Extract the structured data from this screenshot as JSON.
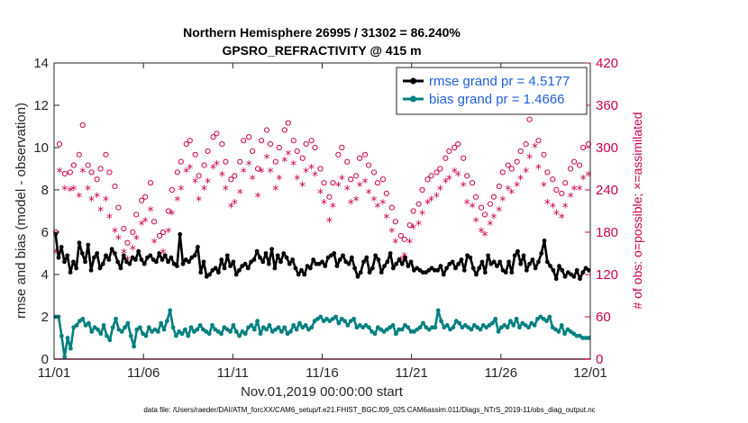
{
  "chart_data": {
    "type": "line",
    "title": "Northern Hemisphere 26995 / 31302 = 86.240%",
    "subtitle": "GPSRO_REFRACTIVITY @ 415 m",
    "xlabel": "Nov.01,2019 00:00:00 start",
    "ylabel": "rmse and bias (model - observation)",
    "ylabel_right": "# of obs: o=possible; ×=assimilated",
    "footer": "data file: /Users/raeder/DAI/ATM_forcXX/CAM6_setup/f.e21.FHIST_BGC.f09_025.CAM6assim.011/Diags_NTrS_2019-11/obs_diag_output.nc",
    "x_ticks": [
      "11/01",
      "11/06",
      "11/11",
      "11/16",
      "11/21",
      "11/26",
      "12/01"
    ],
    "xlim_days": [
      0,
      30
    ],
    "ylim": [
      0,
      14
    ],
    "y_ticks": [
      0,
      2,
      4,
      6,
      8,
      10,
      12,
      14
    ],
    "ylim_right": [
      0,
      420
    ],
    "y_ticks_right": [
      0,
      60,
      120,
      180,
      240,
      300,
      360,
      420
    ],
    "grid": false,
    "legend_position": "top-right",
    "colors": {
      "rmse": "#000000",
      "bias": "#00807f",
      "obs": "#cc0050",
      "legend_text": "#1f5fdc"
    },
    "series": [
      {
        "name": "rmse grand pr = 4.5177",
        "axis": "left",
        "values": [
          5.9,
          4.8,
          5.3,
          4.6,
          4.9,
          4.1,
          4.6,
          4.3,
          5.5,
          5.0,
          4.6,
          5.4,
          4.2,
          4.8,
          5.0,
          4.3,
          4.5,
          4.9,
          4.7,
          5.2,
          5.0,
          4.6,
          4.3,
          4.9,
          4.6,
          4.5,
          4.8,
          4.7,
          5.1,
          4.7,
          4.5,
          4.8,
          4.9,
          4.7,
          4.6,
          5.0,
          4.7,
          4.9,
          4.6,
          4.8,
          4.5,
          4.4,
          5.9,
          4.5,
          4.7,
          4.6,
          4.8,
          4.9,
          5.3,
          4.1,
          4.6,
          3.9,
          4.0,
          4.2,
          4.3,
          4.1,
          4.7,
          4.3,
          4.9,
          4.4,
          4.6,
          4.0,
          4.2,
          4.4,
          4.5,
          4.3,
          4.6,
          4.7,
          5.1,
          4.8,
          4.6,
          5.0,
          4.5,
          5.2,
          4.3,
          4.9,
          4.6,
          5.0,
          4.8,
          4.5,
          4.7,
          4.3,
          4.0,
          4.2,
          4.0,
          4.4,
          4.3,
          4.7,
          4.5,
          4.5,
          4.6,
          4.4,
          4.8,
          4.9,
          5.0,
          4.4,
          4.7,
          4.9,
          4.6,
          4.5,
          4.8,
          4.3,
          3.9,
          4.1,
          4.6,
          4.8,
          4.1,
          4.3,
          4.9,
          4.7,
          4.1,
          4.4,
          4.6,
          5.0,
          4.3,
          4.5,
          4.7,
          4.5,
          4.8,
          4.4,
          4.6,
          4.2,
          4.3,
          4.2,
          4.1,
          4.1,
          4.2,
          4.3,
          4.2,
          4.2,
          4.4,
          4.0,
          4.3,
          4.5,
          4.6,
          4.3,
          4.5,
          4.7,
          4.2,
          4.9,
          4.8,
          4.3,
          4.0,
          4.3,
          4.6,
          4.1,
          4.9,
          4.5,
          4.6,
          4.4,
          4.6,
          4.2,
          4.1,
          4.6,
          4.1,
          4.9,
          5.1,
          4.5,
          4.9,
          4.2,
          4.5,
          4.7,
          4.3,
          4.6,
          5.0,
          5.6,
          4.6,
          4.4,
          4.2,
          3.8,
          4.4,
          4.2,
          3.9,
          4.1,
          4.0,
          3.9,
          4.2,
          3.8,
          4.1,
          4.3,
          4.2
        ]
      },
      {
        "name": "bias grand pr = 1.4666",
        "axis": "left",
        "values": [
          2.0,
          2.0,
          1.1,
          0.1,
          1.0,
          0.5,
          1.5,
          1.6,
          1.8,
          1.9,
          1.6,
          1.7,
          1.3,
          1.5,
          1.4,
          1.2,
          1.6,
          1.1,
          0.9,
          1.5,
          1.9,
          1.4,
          1.3,
          1.5,
          1.7,
          1.1,
          0.6,
          1.4,
          1.5,
          1.2,
          1.1,
          1.5,
          1.3,
          1.4,
          1.3,
          1.7,
          1.4,
          1.8,
          2.3,
          1.5,
          1.1,
          1.3,
          1.2,
          1.4,
          1.1,
          1.5,
          1.3,
          1.4,
          1.6,
          1.4,
          1.3,
          1.2,
          1.6,
          1.4,
          1.3,
          1.2,
          1.5,
          1.4,
          1.3,
          1.6,
          1.3,
          1.1,
          1.3,
          1.2,
          1.5,
          1.6,
          1.4,
          1.8,
          1.2,
          1.5,
          1.4,
          1.6,
          1.3,
          1.4,
          1.5,
          1.3,
          1.5,
          1.2,
          1.3,
          1.6,
          1.4,
          1.7,
          1.5,
          1.6,
          1.4,
          1.5,
          1.8,
          1.9,
          2.0,
          1.8,
          1.9,
          1.8,
          1.9,
          2.0,
          1.7,
          1.9,
          1.8,
          1.6,
          1.8,
          1.9,
          1.5,
          1.6,
          1.5,
          1.6,
          1.5,
          1.3,
          1.2,
          1.5,
          1.4,
          1.3,
          1.4,
          1.5,
          1.6,
          1.2,
          1.4,
          1.4,
          1.6,
          1.5,
          1.3,
          1.3,
          1.4,
          1.5,
          1.7,
          1.5,
          1.4,
          1.5,
          1.5,
          2.3,
          1.8,
          1.5,
          1.6,
          1.4,
          1.5,
          1.8,
          1.7,
          1.5,
          1.6,
          1.5,
          1.4,
          1.6,
          1.5,
          1.4,
          1.6,
          1.5,
          1.6,
          1.7,
          1.9,
          1.3,
          1.5,
          1.6,
          1.5,
          1.8,
          1.6,
          1.9,
          1.5,
          1.7,
          1.6,
          1.5,
          1.7,
          1.6,
          1.9,
          2.0,
          1.9,
          1.8,
          2.0,
          1.5,
          1.4,
          1.3,
          1.6,
          1.2,
          1.4,
          1.3,
          1.2,
          1.1,
          1.1,
          1.0,
          1.0,
          1.0
        ]
      },
      {
        "name": "# of obs possible",
        "axis": "right",
        "marker": "circle",
        "x_days": [
          0.1,
          0.3,
          0.6,
          0.9,
          1.1,
          1.4,
          1.6,
          1.9,
          2.1,
          2.4,
          2.6,
          2.9,
          3.1,
          3.4,
          3.6,
          3.9,
          4.1,
          4.4,
          4.6,
          4.9,
          5.1,
          5.4,
          5.6,
          5.9,
          6.1,
          6.4,
          6.6,
          6.9,
          7.1,
          7.4,
          7.6,
          7.9,
          8.1,
          8.4,
          8.6,
          8.9,
          9.1,
          9.4,
          9.6,
          9.9,
          10.1,
          10.4,
          10.6,
          10.9,
          11.1,
          11.4,
          11.6,
          11.9,
          12.1,
          12.4,
          12.6,
          12.9,
          13.1,
          13.4,
          13.6,
          13.9,
          14.1,
          14.4,
          14.6,
          14.9,
          15.1,
          15.4,
          15.6,
          15.9,
          16.1,
          16.4,
          16.6,
          16.9,
          17.1,
          17.4,
          17.6,
          17.9,
          18.1,
          18.4,
          18.6,
          18.9,
          19.1,
          19.4,
          19.6,
          19.9,
          20.1,
          20.4,
          20.6,
          20.9,
          21.1,
          21.4,
          21.6,
          21.9,
          22.1,
          22.4,
          22.6,
          22.9,
          23.1,
          23.4,
          23.6,
          23.9,
          24.1,
          24.4,
          24.6,
          24.9,
          25.1,
          25.4,
          25.6,
          25.9,
          26.1,
          26.4,
          26.6,
          26.9,
          27.1,
          27.4,
          27.6,
          27.9,
          28.1,
          28.4,
          28.6,
          28.9,
          29.1,
          29.4,
          29.6,
          29.9
        ],
        "values": [
          180,
          305,
          263,
          265,
          275,
          290,
          332,
          275,
          265,
          255,
          270,
          290,
          265,
          245,
          215,
          185,
          165,
          180,
          205,
          225,
          230,
          250,
          195,
          175,
          180,
          210,
          240,
          265,
          280,
          305,
          310,
          290,
          260,
          275,
          295,
          315,
          320,
          305,
          280,
          255,
          260,
          280,
          310,
          315,
          295,
          270,
          310,
          325,
          305,
          280,
          300,
          325,
          335,
          310,
          295,
          285,
          305,
          310,
          300,
          270,
          250,
          230,
          250,
          290,
          300,
          280,
          255,
          260,
          285,
          290,
          275,
          265,
          250,
          255,
          235,
          215,
          195,
          175,
          170,
          190,
          210,
          220,
          240,
          255,
          260,
          265,
          270,
          285,
          295,
          300,
          305,
          285,
          260,
          250,
          230,
          215,
          205,
          220,
          230,
          245,
          265,
          275,
          270,
          280,
          295,
          305,
          340,
          355,
          310,
          290,
          265,
          255,
          240,
          235,
          250,
          270,
          280,
          275,
          300,
          305
        ]
      },
      {
        "name": "# of obs assimilated",
        "axis": "right",
        "marker": "asterisk",
        "x_days": [
          0.1,
          0.3,
          0.6,
          0.9,
          1.1,
          1.4,
          1.6,
          1.9,
          2.1,
          2.4,
          2.6,
          2.9,
          3.1,
          3.4,
          3.6,
          3.9,
          4.1,
          4.4,
          4.6,
          4.9,
          5.1,
          5.4,
          5.6,
          5.9,
          6.1,
          6.4,
          6.6,
          6.9,
          7.1,
          7.4,
          7.6,
          7.9,
          8.1,
          8.4,
          8.6,
          8.9,
          9.1,
          9.4,
          9.6,
          9.9,
          10.1,
          10.4,
          10.6,
          10.9,
          11.1,
          11.4,
          11.6,
          11.9,
          12.1,
          12.4,
          12.6,
          12.9,
          13.1,
          13.4,
          13.6,
          13.9,
          14.1,
          14.4,
          14.6,
          14.9,
          15.1,
          15.4,
          15.6,
          15.9,
          16.1,
          16.4,
          16.6,
          16.9,
          17.1,
          17.4,
          17.6,
          17.9,
          18.1,
          18.4,
          18.6,
          18.9,
          19.1,
          19.4,
          19.6,
          19.9,
          20.1,
          20.4,
          20.6,
          20.9,
          21.1,
          21.4,
          21.6,
          21.9,
          22.1,
          22.4,
          22.6,
          22.9,
          23.1,
          23.4,
          23.6,
          23.9,
          24.1,
          24.4,
          24.6,
          24.9,
          25.1,
          25.4,
          25.6,
          25.9,
          26.1,
          26.4,
          26.6,
          26.9,
          27.1,
          27.4,
          27.6,
          27.9,
          28.1,
          28.4,
          28.6,
          28.9,
          29.1,
          29.4,
          29.6,
          29.9
        ],
        "values": [
          150,
          265,
          240,
          238,
          240,
          230,
          265,
          240,
          225,
          230,
          210,
          225,
          200,
          180,
          170,
          150,
          140,
          155,
          170,
          190,
          195,
          210,
          165,
          145,
          150,
          180,
          205,
          225,
          240,
          265,
          270,
          250,
          225,
          240,
          250,
          270,
          275,
          260,
          240,
          215,
          220,
          235,
          265,
          275,
          255,
          230,
          265,
          285,
          265,
          240,
          255,
          280,
          290,
          275,
          255,
          245,
          265,
          270,
          260,
          235,
          220,
          195,
          215,
          245,
          255,
          240,
          220,
          225,
          245,
          250,
          235,
          225,
          215,
          220,
          200,
          180,
          165,
          140,
          145,
          165,
          185,
          190,
          205,
          220,
          225,
          230,
          240,
          250,
          255,
          265,
          260,
          245,
          220,
          215,
          195,
          180,
          175,
          190,
          200,
          210,
          225,
          240,
          235,
          245,
          255,
          265,
          285,
          300,
          270,
          245,
          220,
          215,
          205,
          200,
          215,
          230,
          240,
          240,
          255,
          260
        ]
      }
    ]
  }
}
